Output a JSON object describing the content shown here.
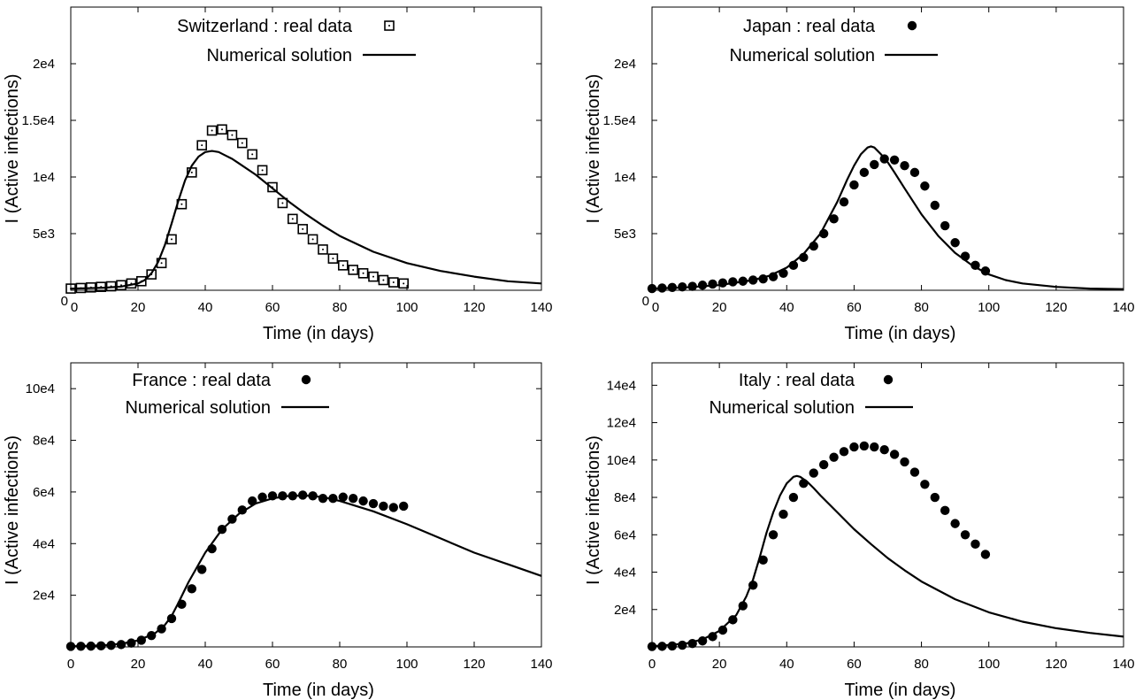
{
  "chart_data": [
    {
      "type": "scatter",
      "panel": "top-left",
      "xlabel": "Time (in days)",
      "ylabel": "I (Active infections)",
      "xlim": [
        0,
        140
      ],
      "ylim": [
        0,
        25000
      ],
      "xticks": [
        0,
        20,
        40,
        60,
        80,
        100,
        120,
        140
      ],
      "xtick_labels": [
        "0",
        "20",
        "40",
        "60",
        "80",
        "100",
        "120",
        "140"
      ],
      "yticks": [
        0,
        5000,
        10000,
        15000,
        20000
      ],
      "ytick_labels": [
        "0",
        "5e3",
        "1e4",
        "1.5e4",
        "2e4"
      ],
      "grid": false,
      "legend_position": "top-center",
      "series": [
        {
          "name": "Switzerland : real data",
          "kind": "points",
          "marker": "square-dot",
          "x": [
            0,
            3,
            6,
            9,
            12,
            15,
            18,
            21,
            24,
            27,
            30,
            33,
            36,
            39,
            42,
            45,
            48,
            51,
            54,
            57,
            60,
            63,
            66,
            69,
            72,
            75,
            78,
            81,
            84,
            87,
            90,
            93,
            96,
            99
          ],
          "y": [
            150,
            200,
            250,
            300,
            350,
            450,
            600,
            800,
            1400,
            2400,
            4500,
            7600,
            10400,
            12800,
            14100,
            14200,
            13700,
            13000,
            12000,
            10600,
            9100,
            7700,
            6300,
            5400,
            4500,
            3600,
            2800,
            2200,
            1800,
            1500,
            1200,
            900,
            700,
            600
          ]
        },
        {
          "name": "Numerical solution",
          "kind": "line",
          "x": [
            0,
            5,
            10,
            15,
            20,
            22,
            24,
            26,
            28,
            30,
            32,
            34,
            36,
            38,
            40,
            42,
            44,
            46,
            48,
            50,
            55,
            60,
            65,
            70,
            75,
            80,
            90,
            100,
            110,
            120,
            130,
            140
          ],
          "y": [
            150,
            180,
            230,
            330,
            600,
            900,
            1500,
            2500,
            4000,
            5900,
            7900,
            9700,
            11000,
            11800,
            12200,
            12300,
            12200,
            11900,
            11600,
            11200,
            10200,
            9000,
            7800,
            6700,
            5700,
            4800,
            3400,
            2400,
            1700,
            1200,
            800,
            600
          ]
        }
      ]
    },
    {
      "type": "scatter",
      "panel": "top-right",
      "xlabel": "Time (in days)",
      "ylabel": "I (Active infections)",
      "xlim": [
        0,
        140
      ],
      "ylim": [
        0,
        25000
      ],
      "xticks": [
        0,
        20,
        40,
        60,
        80,
        100,
        120,
        140
      ],
      "xtick_labels": [
        "0",
        "20",
        "40",
        "60",
        "80",
        "100",
        "120",
        "140"
      ],
      "yticks": [
        0,
        5000,
        10000,
        15000,
        20000
      ],
      "ytick_labels": [
        "0",
        "5e3",
        "1e4",
        "1.5e4",
        "2e4"
      ],
      "grid": false,
      "legend_position": "top-center",
      "series": [
        {
          "name": "Japan : real data",
          "kind": "points",
          "marker": "filled-circle",
          "x": [
            0,
            3,
            6,
            9,
            12,
            15,
            18,
            21,
            24,
            27,
            30,
            33,
            36,
            39,
            42,
            45,
            48,
            51,
            54,
            57,
            60,
            63,
            66,
            69,
            72,
            75,
            78,
            81,
            84,
            87,
            90,
            93,
            96,
            99
          ],
          "y": [
            150,
            200,
            250,
            300,
            350,
            450,
            550,
            650,
            750,
            800,
            900,
            1000,
            1200,
            1500,
            2200,
            2900,
            3900,
            5000,
            6300,
            7800,
            9300,
            10400,
            11100,
            11600,
            11500,
            11000,
            10400,
            9200,
            7500,
            5700,
            4200,
            3000,
            2200,
            1700
          ]
        },
        {
          "name": "Numerical solution",
          "kind": "line",
          "x": [
            0,
            10,
            20,
            30,
            35,
            40,
            45,
            50,
            55,
            58,
            60,
            62,
            64,
            65,
            66,
            68,
            70,
            72,
            75,
            80,
            85,
            90,
            95,
            100,
            105,
            110,
            120,
            130,
            140
          ],
          "y": [
            150,
            250,
            450,
            900,
            1300,
            2000,
            3200,
            5000,
            7800,
            9800,
            11000,
            12000,
            12600,
            12700,
            12600,
            12000,
            11300,
            10400,
            9000,
            6700,
            4800,
            3300,
            2200,
            1400,
            900,
            600,
            300,
            150,
            100
          ]
        }
      ]
    },
    {
      "type": "scatter",
      "panel": "bottom-left",
      "xlabel": "Time (in days)",
      "ylabel": "I (Active infections)",
      "xlim": [
        0,
        140
      ],
      "ylim": [
        0,
        110000
      ],
      "xticks": [
        0,
        20,
        40,
        60,
        80,
        100,
        120,
        140
      ],
      "xtick_labels": [
        "0",
        "20",
        "40",
        "60",
        "80",
        "100",
        "120",
        "140"
      ],
      "yticks": [
        20000,
        40000,
        60000,
        80000,
        100000
      ],
      "ytick_labels": [
        "2e4",
        "4e4",
        "6e4",
        "8e4",
        "10e4"
      ],
      "grid": false,
      "legend_position": "top-center",
      "series": [
        {
          "name": "France : real data",
          "kind": "points",
          "marker": "filled-circle",
          "x": [
            0,
            3,
            6,
            9,
            12,
            15,
            18,
            21,
            24,
            27,
            30,
            33,
            36,
            39,
            42,
            45,
            48,
            51,
            54,
            57,
            60,
            63,
            66,
            69,
            72,
            75,
            78,
            81,
            84,
            87,
            90,
            93,
            96,
            99
          ],
          "y": [
            200,
            250,
            300,
            400,
            600,
            900,
            1500,
            2600,
            4400,
            7000,
            11000,
            16500,
            22500,
            30000,
            38000,
            45500,
            49500,
            53000,
            56500,
            58000,
            58500,
            58500,
            58500,
            58800,
            58500,
            57500,
            57500,
            58000,
            57500,
            56500,
            55500,
            54500,
            54000,
            54500
          ]
        },
        {
          "name": "Numerical solution",
          "kind": "line",
          "x": [
            0,
            10,
            15,
            20,
            25,
            28,
            30,
            32,
            35,
            40,
            45,
            50,
            55,
            60,
            65,
            70,
            75,
            80,
            90,
            100,
            110,
            120,
            130,
            140
          ],
          "y": [
            200,
            600,
            1200,
            2500,
            5200,
            8500,
            12000,
            17000,
            25000,
            36500,
            45500,
            51500,
            55500,
            57500,
            58500,
            58600,
            58000,
            56500,
            52500,
            47500,
            42000,
            36500,
            32000,
            27500
          ]
        }
      ]
    },
    {
      "type": "scatter",
      "panel": "bottom-right",
      "xlabel": "Time (in days)",
      "ylabel": "I (Active infections)",
      "xlim": [
        0,
        140
      ],
      "ylim": [
        0,
        152000
      ],
      "xticks": [
        0,
        20,
        40,
        60,
        80,
        100,
        120,
        140
      ],
      "xtick_labels": [
        "0",
        "20",
        "40",
        "60",
        "80",
        "100",
        "120",
        "140"
      ],
      "yticks": [
        20000,
        40000,
        60000,
        80000,
        100000,
        120000,
        140000
      ],
      "ytick_labels": [
        "2e4",
        "4e4",
        "6e4",
        "8e4",
        "10e4",
        "12e4",
        "14e4"
      ],
      "grid": false,
      "legend_position": "top-center",
      "series": [
        {
          "name": "Italy : real data",
          "kind": "points",
          "marker": "filled-circle",
          "x": [
            0,
            3,
            6,
            9,
            12,
            15,
            18,
            21,
            24,
            27,
            30,
            33,
            36,
            39,
            42,
            45,
            48,
            51,
            54,
            57,
            60,
            63,
            66,
            69,
            72,
            75,
            78,
            81,
            84,
            87,
            90,
            93,
            96,
            99
          ],
          "y": [
            200,
            300,
            500,
            900,
            1800,
            3200,
            5500,
            9000,
            14500,
            22000,
            33000,
            46500,
            60000,
            71000,
            80000,
            87500,
            93000,
            97500,
            101500,
            104500,
            107000,
            107500,
            107000,
            105500,
            103000,
            99000,
            93500,
            87000,
            80000,
            73000,
            66000,
            60000,
            55000,
            49500
          ]
        },
        {
          "name": "Numerical solution",
          "kind": "line",
          "x": [
            0,
            10,
            15,
            20,
            25,
            28,
            30,
            32,
            34,
            36,
            38,
            40,
            42,
            43,
            44,
            46,
            48,
            50,
            55,
            60,
            65,
            70,
            75,
            80,
            90,
            100,
            110,
            120,
            130,
            140
          ],
          "y": [
            300,
            1800,
            4000,
            8500,
            17000,
            27000,
            36000,
            48000,
            61000,
            72000,
            81000,
            87500,
            91000,
            91500,
            91000,
            88500,
            85000,
            81000,
            72000,
            63000,
            55000,
            47500,
            41000,
            35000,
            25500,
            18500,
            13500,
            10000,
            7500,
            5500
          ]
        }
      ]
    }
  ]
}
